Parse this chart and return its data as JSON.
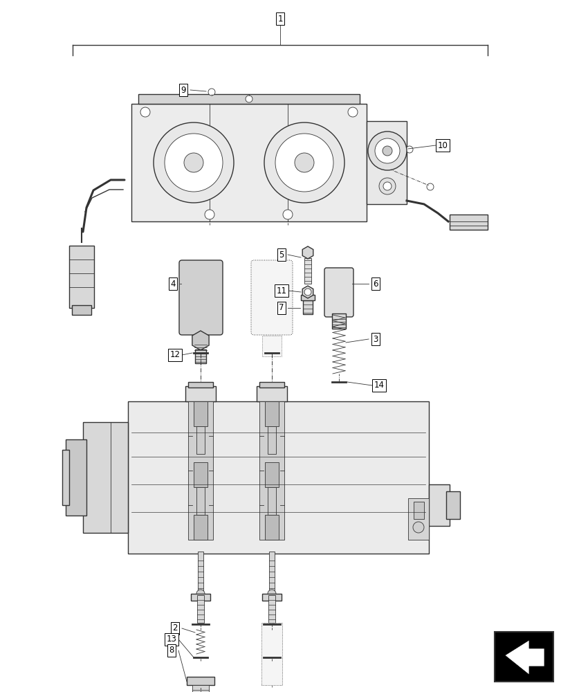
{
  "bg_color": "#ffffff",
  "line_color": "#333333",
  "lw_main": 1.0,
  "lw_thin": 0.6,
  "lw_thick": 1.5,
  "fig_w": 8.12,
  "fig_h": 10.0,
  "dpi": 100
}
